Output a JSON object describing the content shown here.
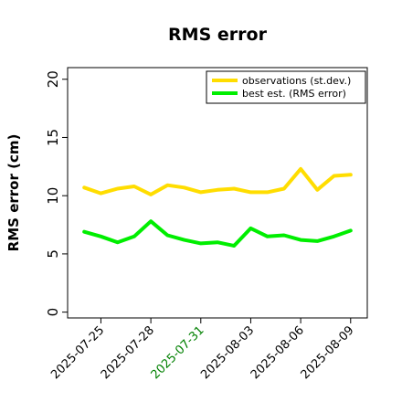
{
  "chart_data": {
    "type": "line",
    "title": "RMS error",
    "xlabel": "",
    "ylabel": "RMS error (cm)",
    "ylim": [
      -0.5,
      21
    ],
    "yticks": [
      0,
      5,
      10,
      15,
      20
    ],
    "grid": false,
    "legend_position": "top-right",
    "x": [
      "2025-07-24",
      "2025-07-25",
      "2025-07-26",
      "2025-07-27",
      "2025-07-28",
      "2025-07-29",
      "2025-07-30",
      "2025-07-31",
      "2025-08-01",
      "2025-08-02",
      "2025-08-03",
      "2025-08-04",
      "2025-08-05",
      "2025-08-06",
      "2025-08-07",
      "2025-08-08",
      "2025-08-09"
    ],
    "xlim": [
      "2025-07-23",
      "2025-08-10"
    ],
    "xticks": [
      {
        "label": "2025-07-25",
        "color": "#000000"
      },
      {
        "label": "2025-07-28",
        "color": "#000000"
      },
      {
        "label": "2025-07-31",
        "color": "#008000"
      },
      {
        "label": "2025-08-03",
        "color": "#000000"
      },
      {
        "label": "2025-08-06",
        "color": "#000000"
      },
      {
        "label": "2025-08-09",
        "color": "#000000"
      }
    ],
    "series": [
      {
        "name": "observations (st.dev.)",
        "color": "#ffdd00",
        "values": [
          10.7,
          10.2,
          10.6,
          10.8,
          10.1,
          10.9,
          10.7,
          10.3,
          10.5,
          10.6,
          10.3,
          10.3,
          10.6,
          12.3,
          10.5,
          11.7,
          11.8
        ]
      },
      {
        "name": "best est. (RMS error)",
        "color": "#00ee00",
        "values": [
          6.9,
          6.5,
          6.0,
          6.5,
          7.8,
          6.6,
          6.2,
          5.9,
          6.0,
          5.7,
          7.2,
          6.5,
          6.6,
          6.2,
          6.1,
          6.5,
          7.0
        ]
      }
    ]
  }
}
